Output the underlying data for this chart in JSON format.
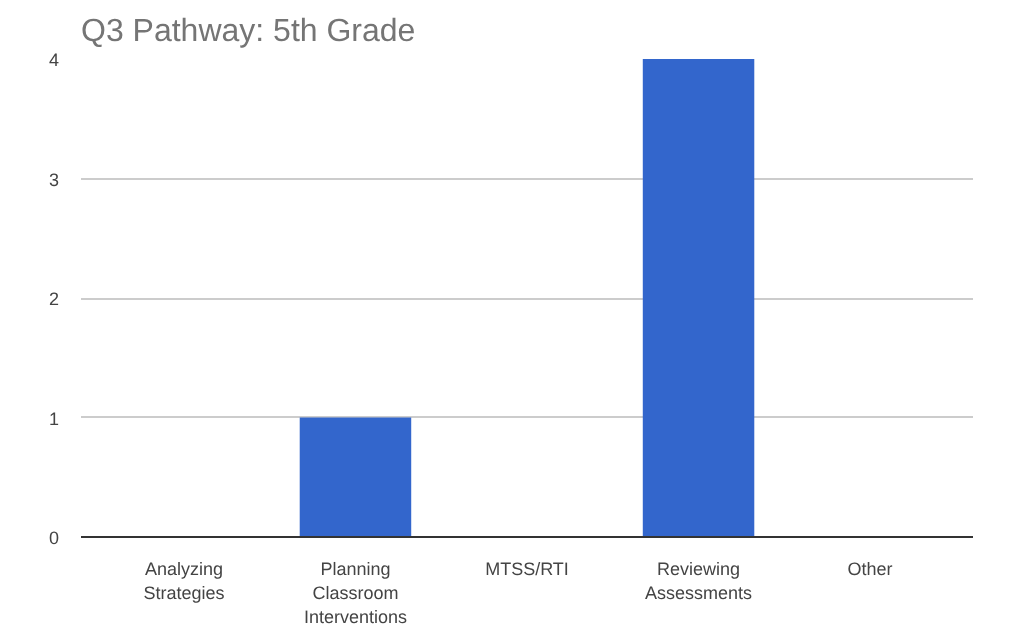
{
  "chart_data": {
    "type": "bar",
    "title": "Q3 Pathway: 5th Grade",
    "categories": [
      "Analyzing Strategies",
      "Planning Classroom Interventions",
      "MTSS/RTI",
      "Reviewing Assessments",
      "Other"
    ],
    "values": [
      0,
      1,
      0,
      4,
      0
    ],
    "color": "#3366cc",
    "ylim": [
      0,
      4
    ],
    "yticks": [
      0,
      1,
      2,
      3,
      4
    ],
    "grid": "y"
  }
}
